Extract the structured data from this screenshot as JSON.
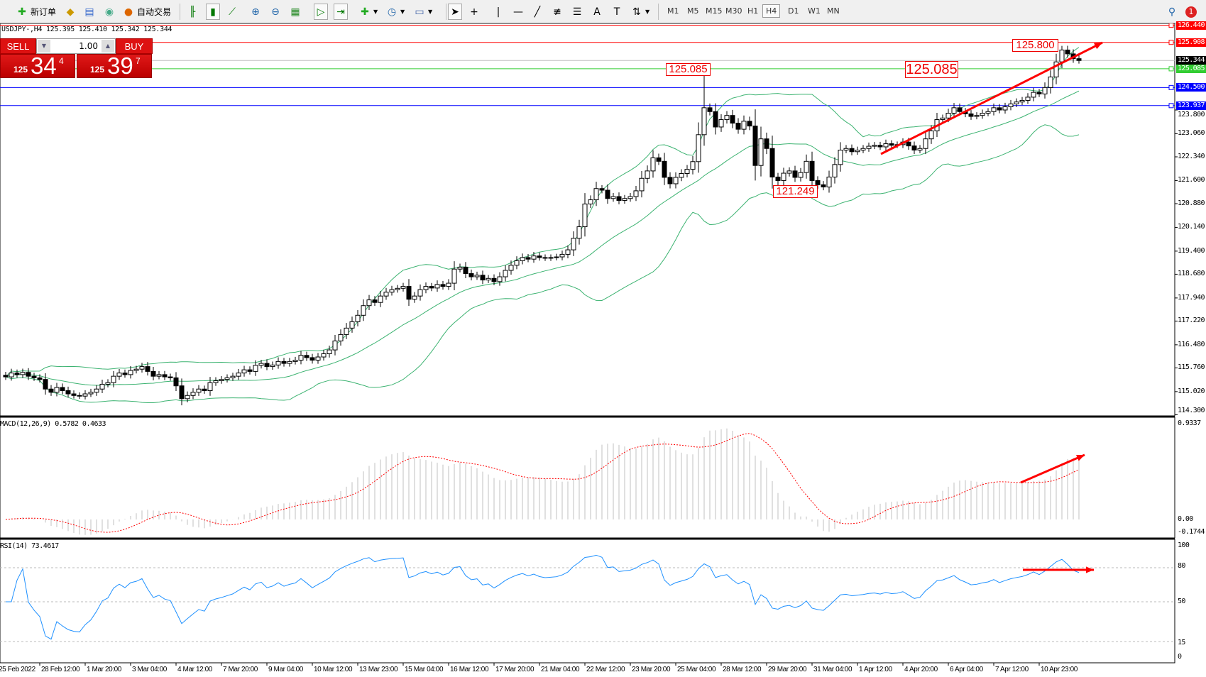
{
  "toolbar": {
    "new_order_label": "新订单",
    "auto_trading_label": "自动交易",
    "icons": [
      "new-order-icon",
      "gold-icon",
      "terminal-icon",
      "signal-icon",
      "auto-trading-icon",
      "bar-chart-icon",
      "candlestick-icon",
      "line-chart-icon",
      "zoom-in-icon",
      "zoom-out-icon",
      "tile-windows-icon",
      "auto-scroll-icon",
      "chart-shift-icon",
      "indicators-icon",
      "periodicity-icon",
      "templates-icon",
      "cursor-icon",
      "crosshair-icon",
      "vertical-line-icon",
      "horizontal-line-icon",
      "trendline-icon",
      "fibonacci-icon",
      "fibo-fan-icon",
      "text-icon",
      "text-label-icon",
      "arrows-icon"
    ],
    "timeframes": [
      "M1",
      "M5",
      "M15",
      "M30",
      "H1",
      "H4",
      "D1",
      "W1",
      "MN"
    ],
    "active_timeframe": "H4",
    "notification_count": "1"
  },
  "symbol_info": "USDJPY-,H4  125.395 125.410 125.342 125.344",
  "one_click": {
    "sell_label": "SELL",
    "buy_label": "BUY",
    "lot": "1.00",
    "sell_price": {
      "small": "125",
      "big": "34",
      "exp": "4"
    },
    "buy_price": {
      "small": "125",
      "big": "39",
      "exp": "7"
    }
  },
  "price_lines": [
    {
      "price": 126.44,
      "label": "126.440",
      "color": "#ff0000"
    },
    {
      "price": 125.908,
      "label": "125.908",
      "color": "#ff0000"
    },
    {
      "price": 125.344,
      "label": "125.344",
      "color": "#000000",
      "line": "#c0c0c0"
    },
    {
      "price": 125.085,
      "label": "125.085",
      "color": "#32cd32"
    },
    {
      "price": 124.5,
      "label": "124.500",
      "color": "#0000ff"
    },
    {
      "price": 123.937,
      "label": "123.937",
      "color": "#0000ff"
    }
  ],
  "annotations": [
    {
      "text": "125.085"
    },
    {
      "text": "125.085"
    },
    {
      "text": "121.249"
    },
    {
      "text": "125.800"
    }
  ],
  "price_axis": [
    "123.800",
    "123.060",
    "122.340",
    "121.600",
    "120.880",
    "120.140",
    "119.400",
    "118.680",
    "117.940",
    "117.220",
    "116.480",
    "115.760",
    "115.020",
    "114.300"
  ],
  "macd": {
    "label": "MACD(12,26,9) 0.5782 0.4633",
    "axis": [
      "0.9337",
      "0.00",
      "-0.1744"
    ],
    "hist_color": "#c0c0c0",
    "signal_color": "#ff0000"
  },
  "rsi": {
    "label": "RSI(14) 73.4617",
    "axis": [
      "100",
      "80",
      "50",
      "15",
      "0"
    ],
    "levels": [
      80,
      50,
      15
    ],
    "color": "#1e90ff"
  },
  "time_axis": [
    "25 Feb 2022",
    "28 Feb 12:00",
    "1 Mar 20:00",
    "3 Mar 04:00",
    "4 Mar 12:00",
    "7 Mar 20:00",
    "9 Mar 04:00",
    "10 Mar 12:00",
    "13 Mar 23:00",
    "15 Mar 04:00",
    "16 Mar 12:00",
    "17 Mar 20:00",
    "21 Mar 04:00",
    "22 Mar 12:00",
    "23 Mar 20:00",
    "25 Mar 04:00",
    "28 Mar 12:00",
    "29 Mar 20:00",
    "31 Mar 04:00",
    "1 Apr 12:00",
    "4 Apr 20:00",
    "6 Apr 04:00",
    "7 Apr 12:00",
    "10 Apr 23:00"
  ],
  "chart_data": {
    "type": "candlestick",
    "symbol": "USDJPY-",
    "timeframe": "H4",
    "ylim": [
      114.3,
      126.44
    ],
    "bollinger_color": "#3cb371",
    "closes": [
      115.48,
      115.6,
      115.55,
      115.62,
      115.5,
      115.45,
      115.4,
      115.1,
      115.0,
      115.15,
      115.05,
      114.95,
      114.9,
      114.88,
      114.95,
      115.0,
      115.1,
      115.25,
      115.3,
      115.5,
      115.6,
      115.55,
      115.68,
      115.72,
      115.8,
      115.65,
      115.5,
      115.55,
      115.48,
      115.45,
      115.2,
      114.8,
      114.9,
      115.0,
      115.1,
      115.05,
      115.3,
      115.36,
      115.4,
      115.45,
      115.5,
      115.6,
      115.7,
      115.65,
      115.84,
      115.9,
      115.8,
      115.85,
      115.96,
      115.9,
      115.96,
      116.0,
      116.15,
      116.08,
      116.0,
      116.1,
      116.2,
      116.32,
      116.6,
      116.8,
      117.0,
      117.2,
      117.4,
      117.7,
      117.88,
      117.8,
      118.0,
      118.12,
      118.2,
      118.24,
      118.3,
      117.9,
      118.0,
      118.2,
      118.3,
      118.25,
      118.36,
      118.3,
      118.4,
      118.84,
      118.9,
      118.7,
      118.6,
      118.65,
      118.5,
      118.55,
      118.45,
      118.6,
      118.8,
      118.96,
      119.1,
      119.2,
      119.15,
      119.25,
      119.2,
      119.18,
      119.2,
      119.22,
      119.3,
      119.44,
      119.8,
      120.16,
      120.87,
      121.0,
      121.35,
      121.3,
      121.04,
      121.1,
      120.98,
      121.04,
      121.1,
      121.28,
      121.67,
      121.9,
      122.31,
      122.2,
      121.7,
      121.5,
      121.7,
      121.82,
      121.95,
      122.19,
      123.03,
      123.87,
      123.75,
      123.27,
      123.5,
      123.63,
      123.39,
      123.2,
      123.45,
      123.3,
      122.07,
      122.9,
      122.6,
      121.71,
      121.6,
      121.83,
      121.9,
      121.7,
      121.85,
      122.2,
      121.6,
      121.47,
      121.4,
      121.71,
      122.1,
      122.55,
      122.6,
      122.5,
      122.55,
      122.6,
      122.67,
      122.7,
      122.65,
      122.75,
      122.7,
      122.72,
      122.8,
      122.68,
      122.55,
      122.6,
      122.9,
      123.15,
      123.5,
      123.55,
      123.7,
      123.87,
      123.75,
      123.68,
      123.6,
      123.63,
      123.7,
      123.75,
      123.87,
      123.8,
      123.9,
      123.99,
      124.05,
      124.1,
      124.2,
      124.35,
      124.3,
      124.5,
      124.83,
      125.3,
      125.67,
      125.55,
      125.4,
      125.344
    ]
  }
}
